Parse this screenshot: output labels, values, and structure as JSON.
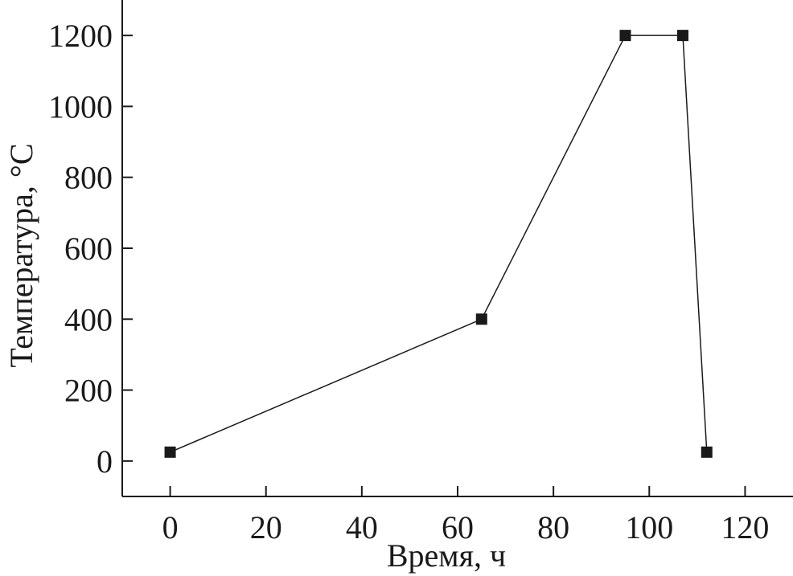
{
  "chart_data": {
    "type": "line",
    "xlabel": "Время, ч",
    "ylabel": "Температура, °С",
    "xlim": [
      -10,
      130
    ],
    "ylim": [
      -100,
      1300
    ],
    "xticks": [
      0,
      20,
      40,
      60,
      80,
      100,
      120
    ],
    "yticks": [
      0,
      200,
      400,
      600,
      800,
      1000,
      1200
    ],
    "grid": false,
    "series": [
      {
        "marker": "square",
        "color": "#1a1a1a",
        "points": [
          {
            "x": 0,
            "y": 25
          },
          {
            "x": 65,
            "y": 400
          },
          {
            "x": 95,
            "y": 1200
          },
          {
            "x": 107,
            "y": 1200
          },
          {
            "x": 112,
            "y": 25
          }
        ]
      }
    ]
  }
}
